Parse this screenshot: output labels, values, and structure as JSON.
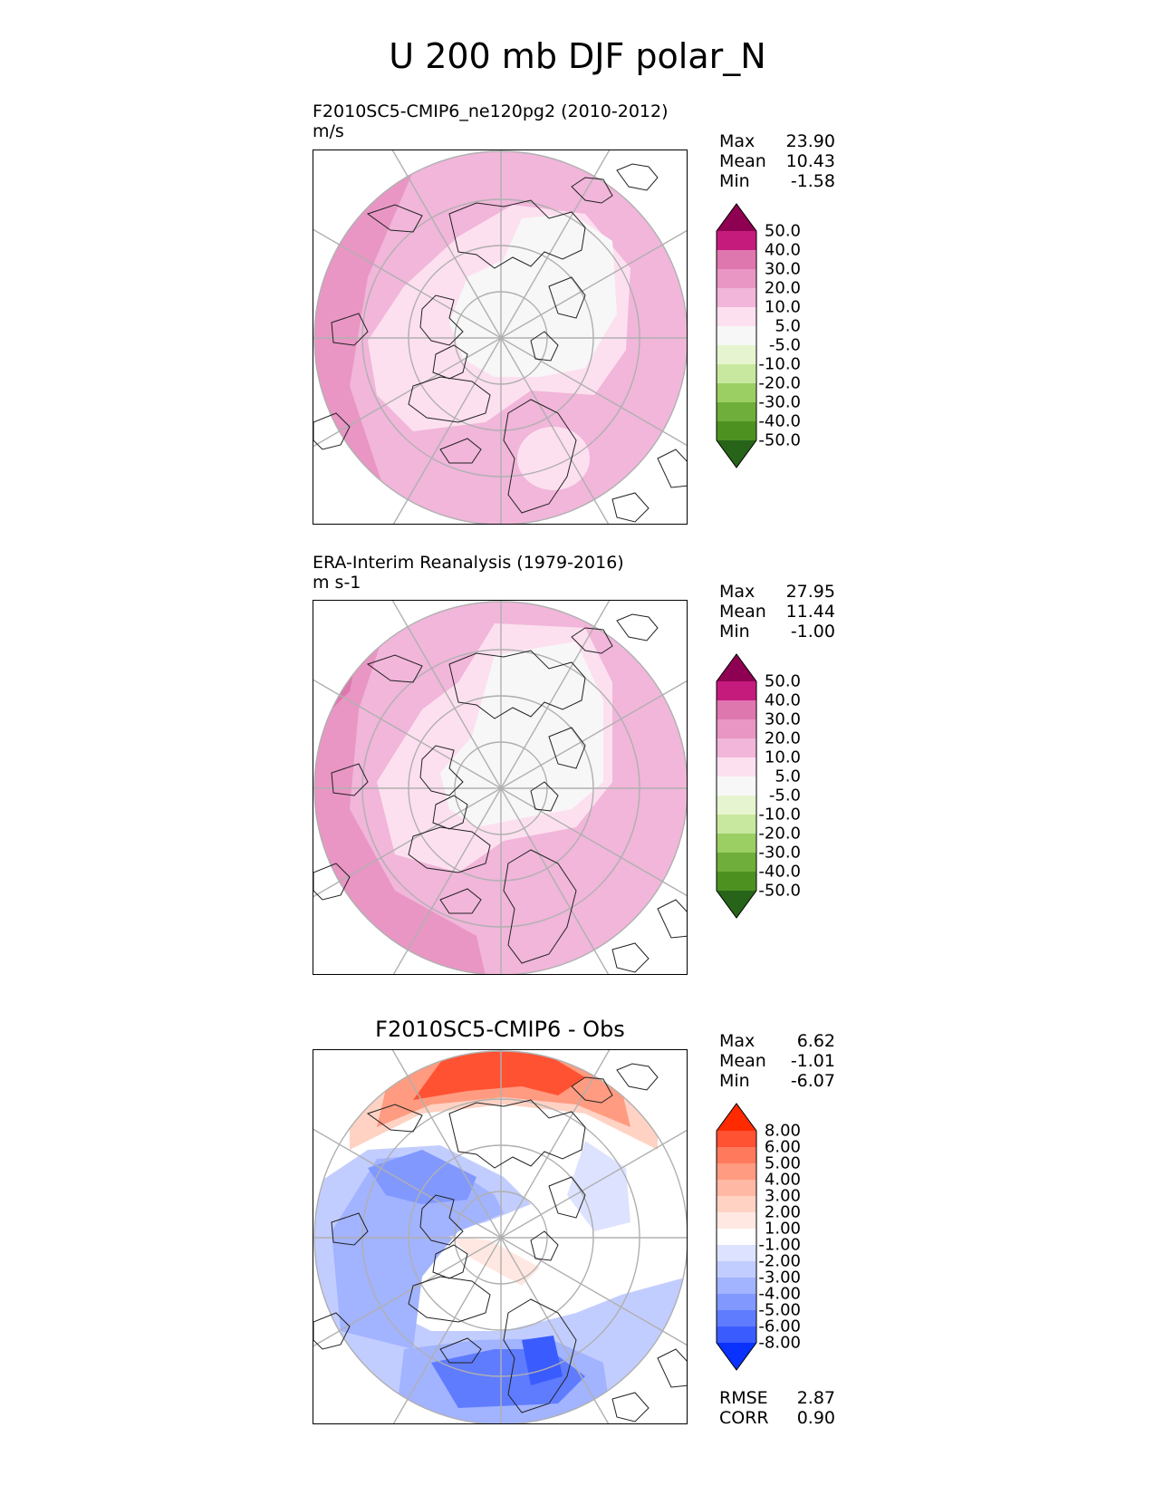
{
  "title": "U 200 mb DJF polar_N",
  "panels": [
    {
      "title_line1": "F2010SC5-CMIP6_ne120pg2 (2010-2012)",
      "title_line2": "m/s",
      "stats": [
        {
          "label": "Max",
          "value": "23.90"
        },
        {
          "label": "Mean",
          "value": "10.43"
        },
        {
          "label": "Min",
          "value": "-1.58"
        }
      ]
    },
    {
      "title_line1": "ERA-Interim Reanalysis (1979-2016)",
      "title_line2": "m s-1",
      "stats": [
        {
          "label": "Max",
          "value": "27.95"
        },
        {
          "label": "Mean",
          "value": "11.44"
        },
        {
          "label": "Min",
          "value": "-1.00"
        }
      ]
    },
    {
      "title_center": "F2010SC5-CMIP6 - Obs",
      "stats": [
        {
          "label": "Max",
          "value": "6.62"
        },
        {
          "label": "Mean",
          "value": "-1.01"
        },
        {
          "label": "Min",
          "value": "-6.07"
        }
      ],
      "metrics": [
        {
          "label": "RMSE",
          "value": "2.87"
        },
        {
          "label": "CORR",
          "value": "0.90"
        }
      ]
    }
  ],
  "chart_data": [
    {
      "type": "heatmap",
      "projection": "north polar stereographic",
      "title": "F2010SC5-CMIP6_ne120pg2 (2010-2012)",
      "units": "m/s",
      "colorbar_levels": [
        "50.0",
        "40.0",
        "30.0",
        "20.0",
        "10.0",
        "5.0",
        "-5.0",
        "-10.0",
        "-20.0",
        "-30.0",
        "-40.0",
        "-50.0"
      ],
      "colorbar_colors": [
        "#8e0152",
        "#c51b7d",
        "#de77ae",
        "#e996c4",
        "#f1b6da",
        "#fde0ef",
        "#f7f7f7",
        "#e6f5d0",
        "#c8e89f",
        "#9ccf63",
        "#6fae3a",
        "#4d9221",
        "#276419"
      ],
      "max": 23.9,
      "mean": 10.43,
      "min": -1.58
    },
    {
      "type": "heatmap",
      "projection": "north polar stereographic",
      "title": "ERA-Interim Reanalysis (1979-2016)",
      "units": "m s-1",
      "colorbar_levels": [
        "50.0",
        "40.0",
        "30.0",
        "20.0",
        "10.0",
        "5.0",
        "-5.0",
        "-10.0",
        "-20.0",
        "-30.0",
        "-40.0",
        "-50.0"
      ],
      "colorbar_colors": [
        "#8e0152",
        "#c51b7d",
        "#de77ae",
        "#e996c4",
        "#f1b6da",
        "#fde0ef",
        "#f7f7f7",
        "#e6f5d0",
        "#c8e89f",
        "#9ccf63",
        "#6fae3a",
        "#4d9221",
        "#276419"
      ],
      "max": 27.95,
      "mean": 11.44,
      "min": -1.0
    },
    {
      "type": "heatmap",
      "projection": "north polar stereographic",
      "title": "F2010SC5-CMIP6 - Obs",
      "colorbar_levels": [
        "8.00",
        "6.00",
        "5.00",
        "4.00",
        "3.00",
        "2.00",
        "1.00",
        "-1.00",
        "-2.00",
        "-3.00",
        "-4.00",
        "-5.00",
        "-6.00",
        "-8.00"
      ],
      "colorbar_colors": [
        "#ff2a00",
        "#ff5233",
        "#ff7a5c",
        "#ff9b80",
        "#ffb8a3",
        "#ffd2c4",
        "#ffe8e1",
        "#ffffff",
        "#dde3ff",
        "#c2cdff",
        "#a2b3ff",
        "#8198ff",
        "#5f7cff",
        "#3a5cff",
        "#0a32ff"
      ],
      "max": 6.62,
      "mean": -1.01,
      "min": -6.07,
      "rmse": 2.87,
      "corr": 0.9
    }
  ]
}
